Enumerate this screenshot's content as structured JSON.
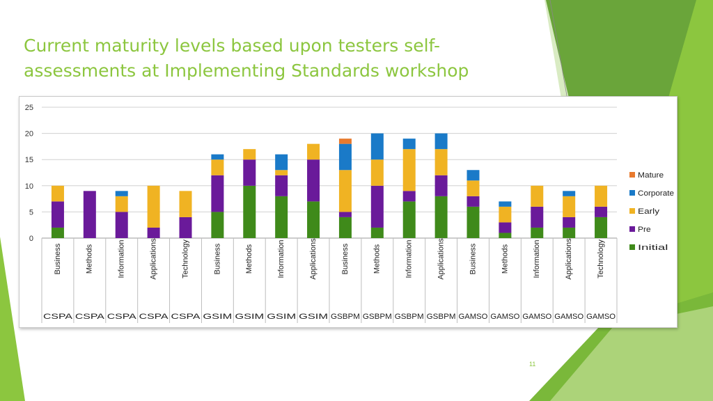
{
  "slide": {
    "title": "Current maturity levels based upon testers self-assessments at Implementing Standards workshop",
    "page_number": "11",
    "accent_color": "#8cc63f"
  },
  "chart_data": {
    "type": "bar",
    "stacked": true,
    "title": "",
    "xlabel": "",
    "ylabel": "",
    "ylim": [
      0,
      25
    ],
    "yticks": [
      0,
      5,
      10,
      15,
      20,
      25
    ],
    "grid": true,
    "legend_position": "right",
    "categories": [
      "Business",
      "Methods",
      "Information",
      "Applications",
      "Technology",
      "Business",
      "Methods",
      "Information",
      "Applications",
      "Business",
      "Methods",
      "Information",
      "Applications",
      "Business",
      "Methods",
      "Information",
      "Applications",
      "Technology"
    ],
    "groups": [
      "CSPA",
      "CSPA",
      "CSPA",
      "CSPA",
      "CSPA",
      "GSIM",
      "GSIM",
      "GSIM",
      "GSIM",
      "GSBPM",
      "GSBPM",
      "GSBPM",
      "GSBPM",
      "GAMSO",
      "GAMSO",
      "GAMSO",
      "GAMSO",
      "GAMSO"
    ],
    "series": [
      {
        "name": "Initial",
        "color": "#3f8a1a",
        "values": [
          2,
          0,
          0,
          0,
          0,
          5,
          10,
          8,
          7,
          4,
          2,
          7,
          8,
          6,
          1,
          2,
          2,
          4
        ]
      },
      {
        "name": "Pre",
        "color": "#6a1a9a",
        "values": [
          5,
          9,
          5,
          2,
          4,
          7,
          5,
          4,
          8,
          1,
          8,
          2,
          4,
          2,
          2,
          4,
          2,
          2
        ]
      },
      {
        "name": "Early",
        "color": "#f0b323",
        "values": [
          3,
          0,
          3,
          8,
          5,
          3,
          2,
          1,
          3,
          8,
          5,
          8,
          5,
          3,
          3,
          4,
          4,
          4
        ]
      },
      {
        "name": "Corporate",
        "color": "#1a7ac8",
        "values": [
          0,
          0,
          1,
          0,
          0,
          1,
          0,
          3,
          0,
          5,
          5,
          2,
          3,
          2,
          1,
          0,
          1,
          0
        ]
      },
      {
        "name": "Mature",
        "color": "#e87a2e",
        "values": [
          0,
          0,
          0,
          0,
          0,
          0,
          0,
          0,
          0,
          1,
          0,
          0,
          0,
          0,
          0,
          0,
          0,
          0
        ]
      }
    ],
    "legend_order": [
      "Mature",
      "Corporate",
      "Early",
      "Pre",
      "Initial"
    ]
  }
}
